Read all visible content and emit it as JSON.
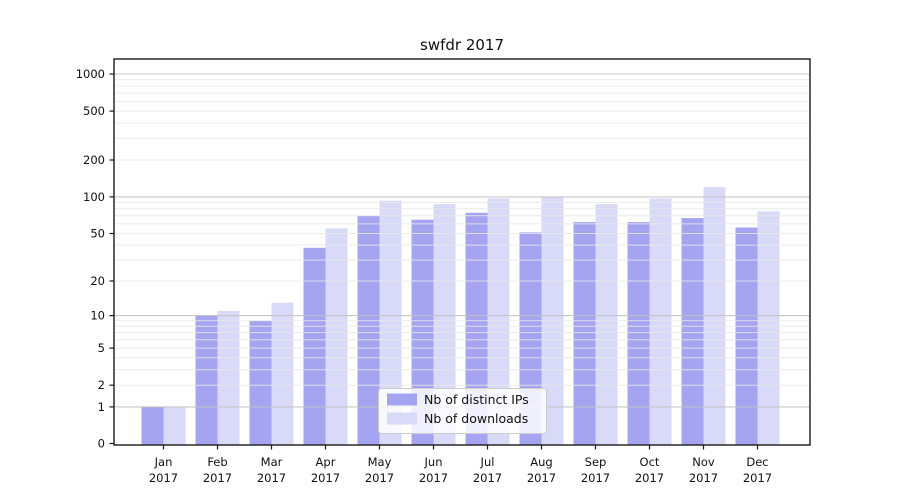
{
  "chart_data": {
    "type": "bar",
    "title": "swfdr 2017",
    "categories": [
      "Jan",
      "Feb",
      "Mar",
      "Apr",
      "May",
      "Jun",
      "Jul",
      "Aug",
      "Sep",
      "Oct",
      "Nov",
      "Dec"
    ],
    "x_tick_second_line": "2017",
    "series": [
      {
        "name": "Nb of distinct IPs",
        "color": "#a4a4f0",
        "values": [
          1,
          10,
          9,
          38,
          70,
          65,
          74,
          51,
          62,
          62,
          67,
          56
        ]
      },
      {
        "name": "Nb of downloads",
        "color": "#d9d9f8",
        "values": [
          1,
          11,
          13,
          55,
          93,
          87,
          97,
          100,
          87,
          97,
          120,
          76
        ]
      }
    ],
    "y_scale": "log1p",
    "y_ticks": [
      0,
      1,
      2,
      5,
      10,
      20,
      50,
      100,
      200,
      500,
      1000
    ],
    "ylim": [
      0,
      1500
    ],
    "xlabel": "",
    "ylabel": "",
    "grid": true,
    "legend_position": "lower-center",
    "colors": {
      "major_grid": "#c2c2c2",
      "minor_grid": "#e9e9e9",
      "spine": "#1a1a1a",
      "legend_border": "#cccccc",
      "legend_bg": "#ffffff"
    }
  }
}
